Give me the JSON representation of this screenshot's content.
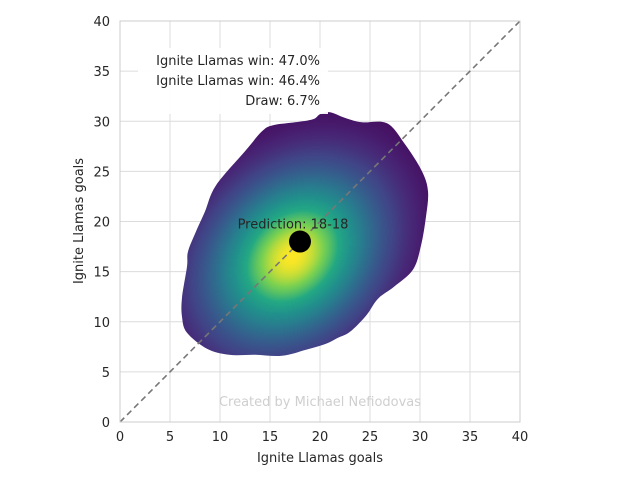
{
  "chart_data": {
    "type": "heatmap",
    "subtype": "score-probability-density",
    "xlabel": "Ignite Llamas goals",
    "ylabel": "Ignite Llamas goals",
    "xlim": [
      0,
      40
    ],
    "ylim": [
      0,
      40
    ],
    "x_ticks": [
      0,
      5,
      10,
      15,
      20,
      25,
      30,
      35,
      40
    ],
    "y_ticks": [
      0,
      5,
      10,
      15,
      20,
      25,
      30,
      35,
      40
    ],
    "x_tick_labels": [
      "0",
      "5",
      "10",
      "15",
      "20",
      "25",
      "30",
      "35",
      "40"
    ],
    "y_tick_labels": [
      "0",
      "5",
      "10",
      "15",
      "20",
      "25",
      "30",
      "35",
      "40"
    ],
    "grid": true,
    "colormap": "viridis",
    "density": {
      "center": [
        17.2,
        16.6
      ],
      "spread": [
        5.6,
        5.6
      ],
      "correlation": 0.25,
      "outline": [
        [
          8.5,
          21
        ],
        [
          9.6,
          23.6
        ],
        [
          12.5,
          27
        ],
        [
          14.2,
          29
        ],
        [
          15.3,
          29.6
        ],
        [
          17.5,
          29.9
        ],
        [
          19.3,
          30.2
        ],
        [
          20,
          30.7
        ],
        [
          21,
          30.9
        ],
        [
          22.6,
          30.3
        ],
        [
          24.2,
          29.9
        ],
        [
          26.7,
          29.8
        ],
        [
          28.5,
          27.7
        ],
        [
          30.2,
          25
        ],
        [
          30.8,
          23
        ],
        [
          30.6,
          20.5
        ],
        [
          30.1,
          17.6
        ],
        [
          29.3,
          15.2
        ],
        [
          27.4,
          13.5
        ],
        [
          25.8,
          12.3
        ],
        [
          24.6,
          10.6
        ],
        [
          23,
          9
        ],
        [
          21.8,
          8.4
        ],
        [
          20.6,
          7.8
        ],
        [
          18.6,
          7.2
        ],
        [
          16.2,
          6.6
        ],
        [
          13.5,
          6.7
        ],
        [
          10.9,
          6.7
        ],
        [
          8.7,
          7.3
        ],
        [
          6.7,
          8.9
        ],
        [
          6.2,
          10.5
        ],
        [
          6.2,
          12.4
        ],
        [
          6.7,
          15.5
        ],
        [
          6.8,
          17
        ],
        [
          7.6,
          19
        ]
      ]
    },
    "diagonal": {
      "from": [
        0,
        0
      ],
      "to": [
        40,
        40
      ],
      "style": "dashed",
      "color": "#777777"
    },
    "prediction_point": {
      "x": 18,
      "y": 18,
      "color": "#000000"
    },
    "annotations": {
      "prediction": "Prediction: 18-18",
      "legend_lines": [
        "Ignite Llamas win: 47.0%",
        "Ignite Llamas win: 46.4%",
        "Draw: 6.7%"
      ],
      "watermark": "Created by Michael Nefiodovas"
    }
  }
}
